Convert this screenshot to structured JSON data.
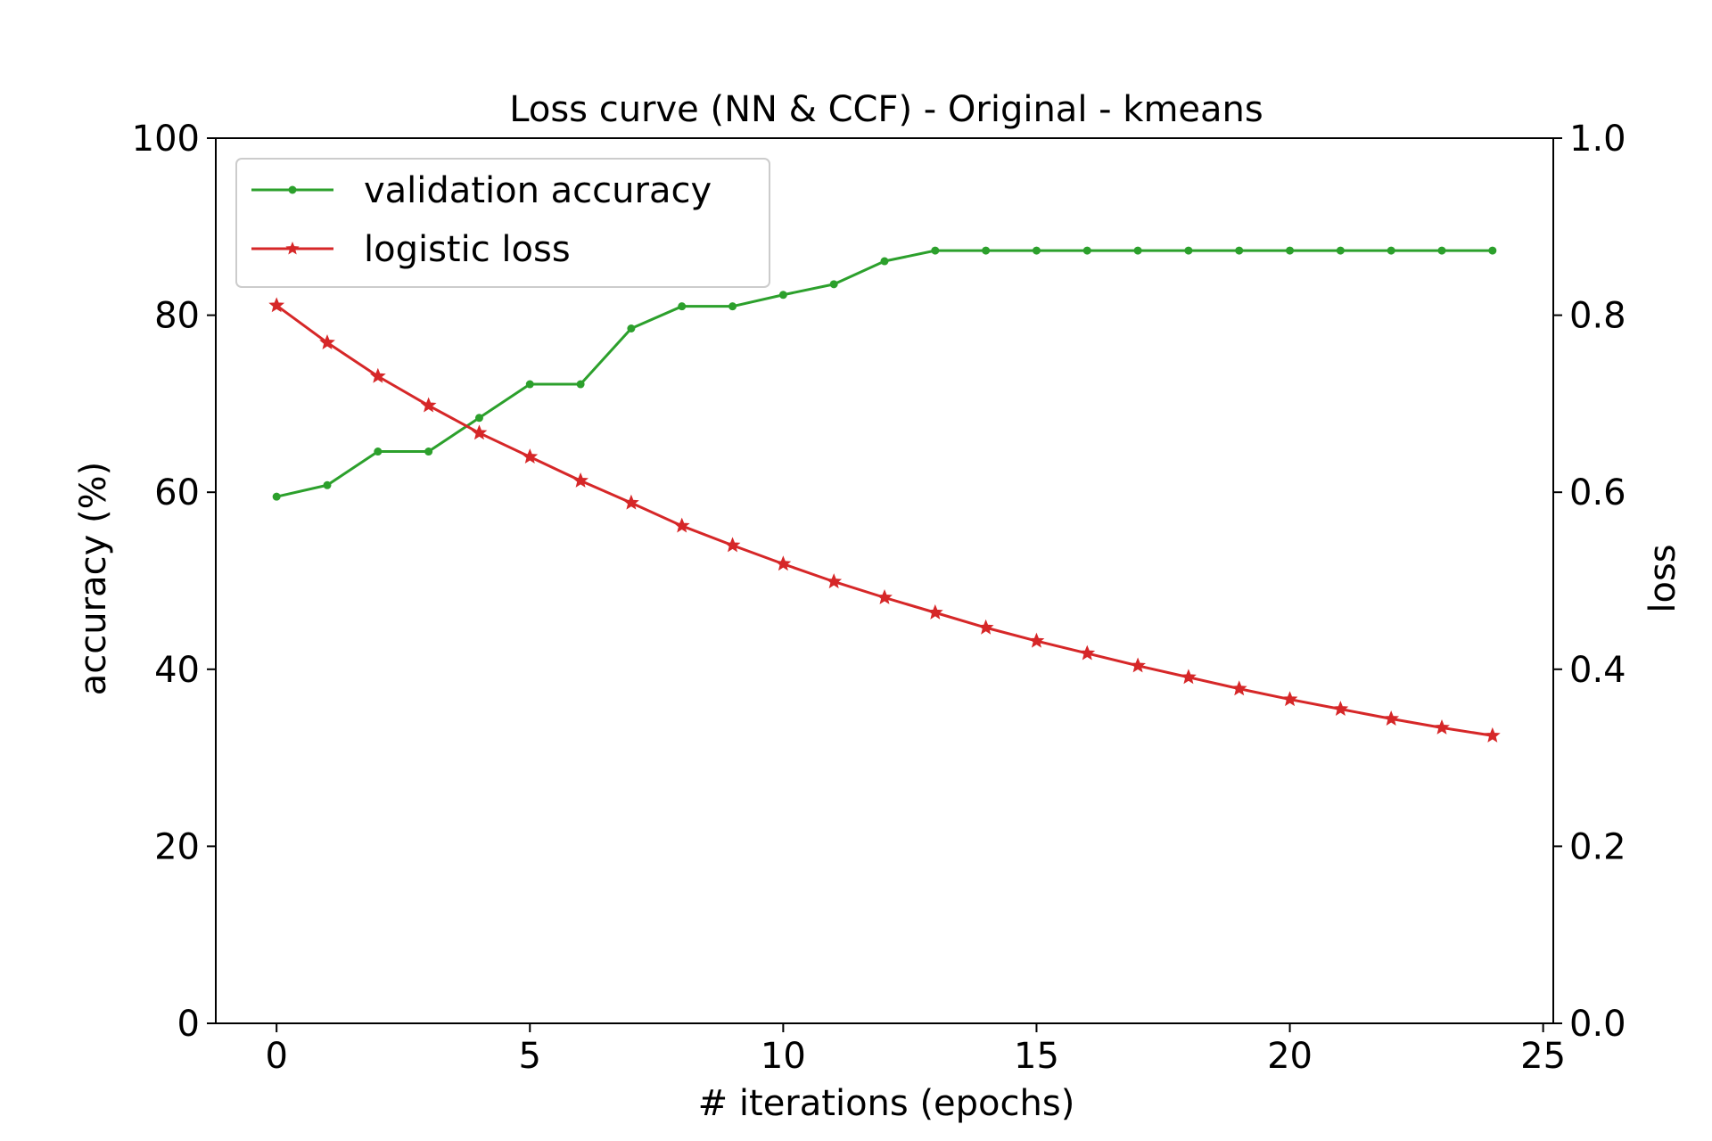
{
  "chart_data": {
    "type": "line",
    "title": "Loss curve (NN & CCF) - Original - kmeans",
    "xlabel": "# iterations (epochs)",
    "ylabel": "accuracy (%)",
    "y2label": "loss",
    "xlim": [
      -1.2,
      25.2
    ],
    "ylim": [
      0,
      100
    ],
    "y2lim": [
      0.0,
      1.0
    ],
    "xticks": [
      0,
      5,
      10,
      15,
      20,
      25
    ],
    "yticks": [
      0,
      20,
      40,
      60,
      80,
      100
    ],
    "y2ticks": [
      "0.0",
      "0.2",
      "0.4",
      "0.6",
      "0.8",
      "1.0"
    ],
    "x": [
      0,
      1,
      2,
      3,
      4,
      5,
      6,
      7,
      8,
      9,
      10,
      11,
      12,
      13,
      14,
      15,
      16,
      17,
      18,
      19,
      20,
      21,
      22,
      23,
      24
    ],
    "series": [
      {
        "name": "validation accuracy",
        "axis": "left",
        "color": "#2ca02c",
        "marker": "dot",
        "values": [
          59.5,
          60.8,
          64.6,
          64.6,
          68.4,
          72.2,
          72.2,
          78.5,
          81.0,
          81.0,
          82.3,
          83.5,
          86.1,
          87.3,
          87.3,
          87.3,
          87.3,
          87.3,
          87.3,
          87.3,
          87.3,
          87.3,
          87.3,
          87.3,
          87.3
        ]
      },
      {
        "name": "logistic loss",
        "axis": "right",
        "color": "#d62728",
        "marker": "star",
        "values": [
          0.811,
          0.769,
          0.731,
          0.698,
          0.667,
          0.64,
          0.613,
          0.588,
          0.562,
          0.54,
          0.519,
          0.499,
          0.481,
          0.464,
          0.447,
          0.432,
          0.418,
          0.404,
          0.391,
          0.378,
          0.366,
          0.355,
          0.344,
          0.334,
          0.325
        ]
      }
    ],
    "grid": false,
    "legend_position": "upper-left"
  }
}
